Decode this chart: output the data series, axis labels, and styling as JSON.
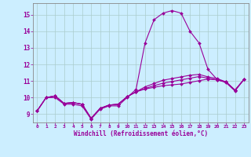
{
  "xlabel": "Windchill (Refroidissement éolien,°C)",
  "bg_color": "#cceeff",
  "line_color": "#990099",
  "grid_color": "#aacccc",
  "xlim": [
    -0.5,
    23.5
  ],
  "ylim": [
    8.5,
    15.7
  ],
  "xticks": [
    0,
    1,
    2,
    3,
    4,
    5,
    6,
    7,
    8,
    9,
    10,
    11,
    12,
    13,
    14,
    15,
    16,
    17,
    18,
    19,
    20,
    21,
    22,
    23
  ],
  "yticks": [
    9,
    10,
    11,
    12,
    13,
    14,
    15
  ],
  "series": [
    [
      9.2,
      10.0,
      10.0,
      9.6,
      9.6,
      9.5,
      8.7,
      9.3,
      9.5,
      9.5,
      10.0,
      10.5,
      13.3,
      14.7,
      15.1,
      15.25,
      15.1,
      14.0,
      13.3,
      11.7,
      11.1,
      10.9,
      10.4,
      11.1
    ],
    [
      9.2,
      10.0,
      10.1,
      9.65,
      9.7,
      9.6,
      8.75,
      9.35,
      9.55,
      9.6,
      10.05,
      10.35,
      10.65,
      10.85,
      11.05,
      11.15,
      11.25,
      11.35,
      11.4,
      11.25,
      11.15,
      10.95,
      10.45,
      11.1
    ],
    [
      9.2,
      10.0,
      10.1,
      9.65,
      9.7,
      9.6,
      8.75,
      9.35,
      9.55,
      9.6,
      10.05,
      10.35,
      10.55,
      10.72,
      10.87,
      10.97,
      11.07,
      11.17,
      11.27,
      11.17,
      11.07,
      10.95,
      10.45,
      11.1
    ],
    [
      9.2,
      10.0,
      10.1,
      9.65,
      9.7,
      9.6,
      8.75,
      9.35,
      9.55,
      9.6,
      10.05,
      10.35,
      10.52,
      10.62,
      10.72,
      10.77,
      10.82,
      10.92,
      11.02,
      11.12,
      11.07,
      10.95,
      10.45,
      11.1
    ]
  ]
}
